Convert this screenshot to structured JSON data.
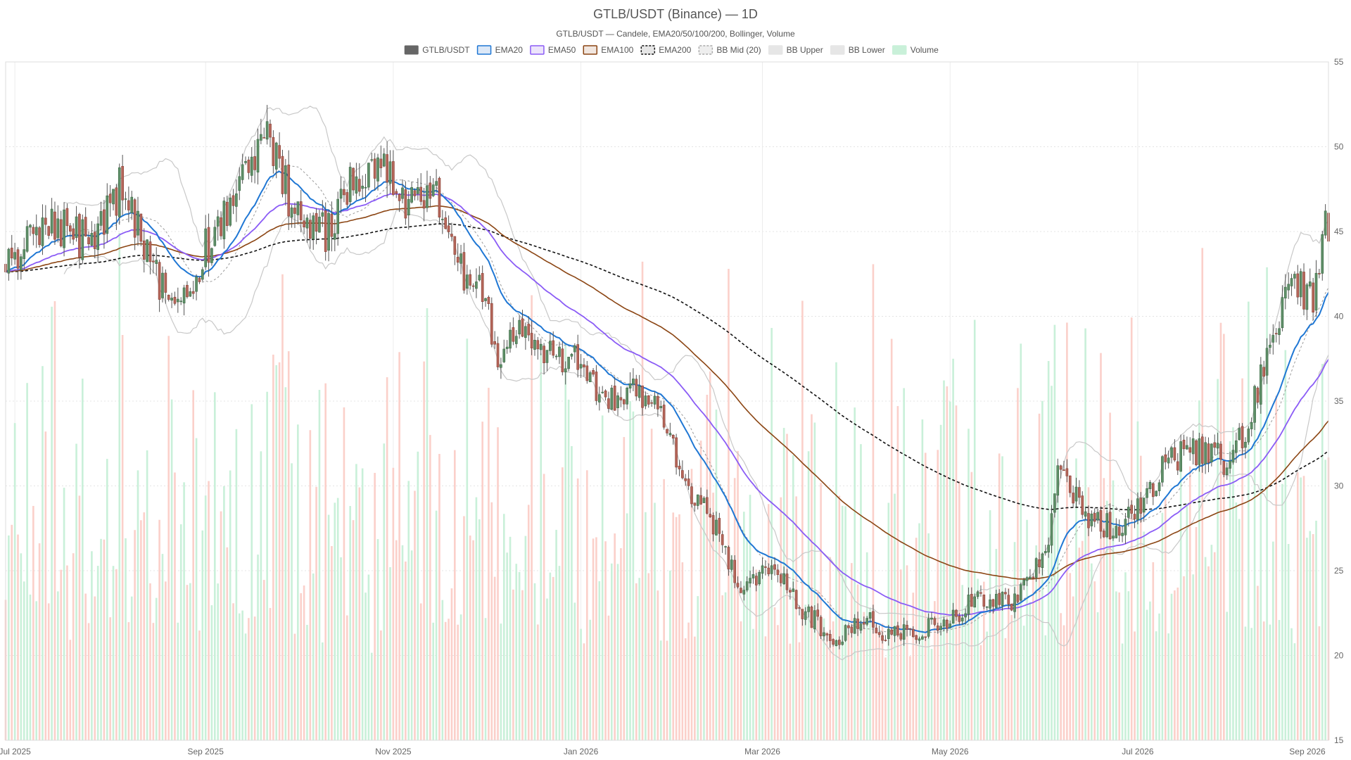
{
  "chart_data": {
    "type": "candlestick",
    "title": "GTLB/USDT (Binance) — 1D",
    "subtitle": "GTLB/USDT — Candele, EMA20/50/100/200, Bollinger, Volume",
    "legend": [
      {
        "name": "GTLB/USDT",
        "style": "fill",
        "fill": "#666666",
        "stroke": "#666666"
      },
      {
        "name": "EMA20",
        "style": "box",
        "fill": "#dce8f7",
        "stroke": "#1f77d4"
      },
      {
        "name": "EMA50",
        "style": "box",
        "fill": "#ece4fb",
        "stroke": "#8b5cf6"
      },
      {
        "name": "EMA100",
        "style": "box",
        "fill": "#f1e6df",
        "stroke": "#8b4513"
      },
      {
        "name": "EMA200",
        "style": "dashbox",
        "fill": "#e6e6e6",
        "stroke": "#111111"
      },
      {
        "name": "BB Mid (20)",
        "style": "dashbox",
        "fill": "#eeeeee",
        "stroke": "#aaaaaa"
      },
      {
        "name": "BB Upper",
        "style": "box",
        "fill": "#e6e6e6",
        "stroke": "#e6e6e6"
      },
      {
        "name": "BB Lower",
        "style": "box",
        "fill": "#e6e6e6",
        "stroke": "#e6e6e6"
      },
      {
        "name": "Volume",
        "style": "box",
        "fill": "#c9f0d9",
        "stroke": "#c9f0d9"
      }
    ],
    "y_axis": {
      "min": 15,
      "max": 55,
      "ticks": [
        15,
        20,
        25,
        30,
        35,
        40,
        45,
        50,
        55
      ],
      "position": "right"
    },
    "x_axis": {
      "start": "2025-06-28",
      "end": "2026-09-01",
      "ticks": [
        {
          "date": "2025-07-01",
          "label": "Jul 2025"
        },
        {
          "date": "2025-09-01",
          "label": "Sep 2025"
        },
        {
          "date": "2025-11-01",
          "label": "Nov 2025"
        },
        {
          "date": "2026-01-01",
          "label": "Jan 2026"
        },
        {
          "date": "2026-03-01",
          "label": "Mar 2026"
        },
        {
          "date": "2026-05-01",
          "label": "May 2026"
        },
        {
          "date": "2026-07-01",
          "label": "Jul 2026"
        },
        {
          "date": "2026-09-01",
          "label": "Sep 2026"
        }
      ]
    },
    "close_path": [
      [
        "2025-06-28",
        42.9
      ],
      [
        "2025-07-10",
        45.5
      ],
      [
        "2025-07-25",
        44.5
      ],
      [
        "2025-08-05",
        47.8
      ],
      [
        "2025-08-12",
        44.0
      ],
      [
        "2025-08-22",
        40.2
      ],
      [
        "2025-09-01",
        44.0
      ],
      [
        "2025-09-10",
        46.5
      ],
      [
        "2025-09-20",
        50.5
      ],
      [
        "2025-10-01",
        46.0
      ],
      [
        "2025-10-10",
        45.0
      ],
      [
        "2025-10-20",
        48.5
      ],
      [
        "2025-10-28",
        49.0
      ],
      [
        "2025-11-05",
        46.5
      ],
      [
        "2025-11-15",
        46.8
      ],
      [
        "2025-11-22",
        43.0
      ],
      [
        "2025-11-30",
        41.5
      ],
      [
        "2025-12-05",
        38.0
      ],
      [
        "2025-12-12",
        39.5
      ],
      [
        "2025-12-20",
        37.8
      ],
      [
        "2025-12-31",
        37.2
      ],
      [
        "2026-01-10",
        35.0
      ],
      [
        "2026-01-20",
        35.5
      ],
      [
        "2026-01-27",
        34.0
      ],
      [
        "2026-02-05",
        30.0
      ],
      [
        "2026-02-15",
        27.0
      ],
      [
        "2026-02-22",
        24.0
      ],
      [
        "2026-03-05",
        25.0
      ],
      [
        "2026-03-15",
        22.5
      ],
      [
        "2026-03-25",
        21.0
      ],
      [
        "2026-04-05",
        22.5
      ],
      [
        "2026-04-10",
        21.0
      ],
      [
        "2026-04-20",
        21.5
      ],
      [
        "2026-05-01",
        22.0
      ],
      [
        "2026-05-10",
        23.5
      ],
      [
        "2026-05-20",
        23.0
      ],
      [
        "2026-06-01",
        26.0
      ],
      [
        "2026-06-05",
        31.0
      ],
      [
        "2026-06-15",
        28.0
      ],
      [
        "2026-06-25",
        27.5
      ],
      [
        "2026-07-01",
        28.5
      ],
      [
        "2026-07-10",
        31.5
      ],
      [
        "2026-07-20",
        32.0
      ],
      [
        "2026-07-30",
        31.5
      ],
      [
        "2026-08-05",
        33.0
      ],
      [
        "2026-08-12",
        38.0
      ],
      [
        "2026-08-20",
        42.0
      ],
      [
        "2026-08-27",
        41.0
      ],
      [
        "2026-08-31",
        45.5
      ]
    ],
    "volume_pane_max": 60
  }
}
